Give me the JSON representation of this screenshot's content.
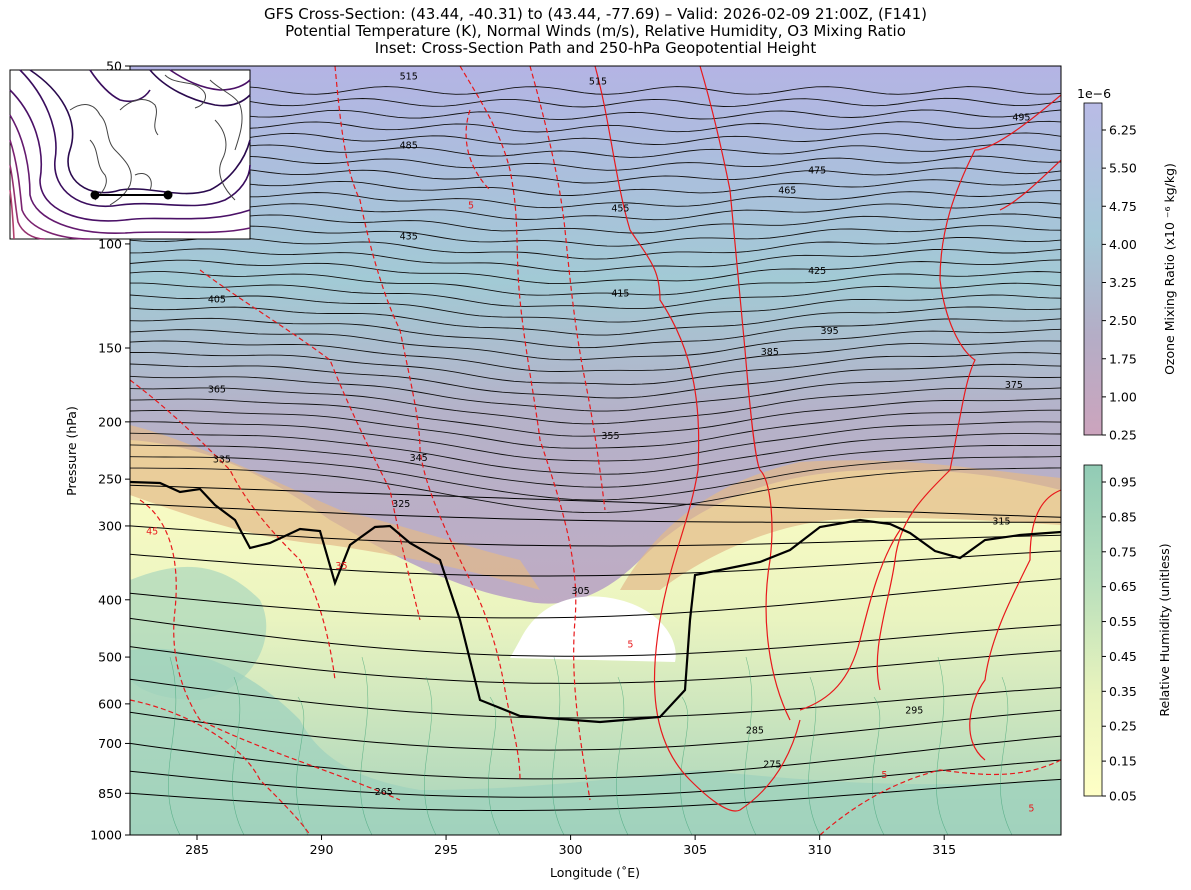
{
  "chart_data": {
    "type": "cross-section",
    "title": [
      "GFS Cross-Section: (43.44, -40.31) to (43.44, -77.69) – Valid: 2026-02-09 21:00Z, (F141)",
      "Potential Temperature (K), Normal Winds (m/s), Relative Humidity, O3 Mixing Ratio",
      "Inset: Cross-Section Path and 250-hPa Geopotential Height"
    ],
    "xlabel": "Longitude (˚E)",
    "ylabel": "Pressure (hPa)",
    "xlim": [
      282.31,
      319.69
    ],
    "ylim": [
      1000,
      50
    ],
    "y_scale": "log",
    "x_ticks": [
      285,
      290,
      295,
      300,
      305,
      310,
      315
    ],
    "y_ticks": [
      50,
      100,
      150,
      200,
      250,
      300,
      400,
      500,
      600,
      700,
      850,
      1000
    ],
    "theta_labels": [
      {
        "v": "515",
        "x": 293.5,
        "p": 52
      },
      {
        "v": "515",
        "x": 301.1,
        "p": 53
      },
      {
        "v": "495",
        "x": 318.1,
        "p": 61
      },
      {
        "v": "485",
        "x": 293.5,
        "p": 68
      },
      {
        "v": "475",
        "x": 309.9,
        "p": 75
      },
      {
        "v": "465",
        "x": 308.7,
        "p": 81
      },
      {
        "v": "455",
        "x": 302.0,
        "p": 87
      },
      {
        "v": "435",
        "x": 293.5,
        "p": 97
      },
      {
        "v": "425",
        "x": 309.9,
        "p": 111
      },
      {
        "v": "415",
        "x": 302.0,
        "p": 121
      },
      {
        "v": "405",
        "x": 285.8,
        "p": 124
      },
      {
        "v": "395",
        "x": 310.4,
        "p": 140
      },
      {
        "v": "385",
        "x": 308.0,
        "p": 152
      },
      {
        "v": "375",
        "x": 317.8,
        "p": 173
      },
      {
        "v": "365",
        "x": 285.8,
        "p": 176
      },
      {
        "v": "355",
        "x": 301.6,
        "p": 211
      },
      {
        "v": "345",
        "x": 293.9,
        "p": 230
      },
      {
        "v": "335",
        "x": 286.0,
        "p": 231
      },
      {
        "v": "325",
        "x": 293.2,
        "p": 275
      },
      {
        "v": "315",
        "x": 317.3,
        "p": 294
      },
      {
        "v": "305",
        "x": 300.4,
        "p": 386
      },
      {
        "v": "295",
        "x": 313.8,
        "p": 615
      },
      {
        "v": "285",
        "x": 307.4,
        "p": 664
      },
      {
        "v": "275",
        "x": 308.1,
        "p": 759
      },
      {
        "v": "265",
        "x": 292.5,
        "p": 844
      }
    ],
    "wind_labels": [
      {
        "v": "5",
        "x": 296.0,
        "p": 86
      },
      {
        "v": "45",
        "x": 283.2,
        "p": 306
      },
      {
        "v": "35",
        "x": 290.8,
        "p": 350
      },
      {
        "v": "5",
        "x": 302.4,
        "p": 475
      },
      {
        "v": "5",
        "x": 312.6,
        "p": 790
      },
      {
        "v": "5",
        "x": 318.5,
        "p": 900
      }
    ],
    "colorbars": [
      {
        "label": "Ozone Mixing Ratio (x10 ⁻⁶ kg/kg)",
        "offset": "1e−6",
        "ticks": [
          "6.25",
          "5.50",
          "4.75",
          "4.00",
          "3.25",
          "2.50",
          "1.75",
          "1.00",
          "0.25"
        ],
        "colors": [
          "#b9bbe6",
          "#a9c6dc",
          "#b6a9c7",
          "#cca4bd"
        ]
      },
      {
        "label": "Relative Humidity (unitless)",
        "ticks": [
          "0.95",
          "0.85",
          "0.75",
          "0.65",
          "0.55",
          "0.45",
          "0.35",
          "0.25",
          "0.15",
          "0.05"
        ],
        "colors": [
          "#91cbb5",
          "#c5e4bb",
          "#f5f8c2",
          "#ffffc6"
        ]
      }
    ],
    "inset": {
      "path_start": [
        43.44,
        -77.69
      ],
      "path_end": [
        43.44,
        -40.31
      ]
    }
  }
}
